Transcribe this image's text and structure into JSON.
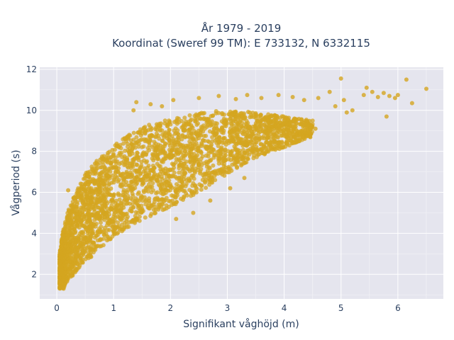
{
  "chart_data": {
    "type": "scatter",
    "title_line1": "År 1979 - 2019",
    "title_line2": "Koordinat (Sweref 99 TM): E 733132, N 6332115",
    "xlabel": "Signifikant våghöjd (m)",
    "ylabel": "Vågperiod (s)",
    "xlim": [
      -0.3,
      6.8
    ],
    "ylim": [
      0.8,
      12.1
    ],
    "x_ticks": [
      0,
      1,
      2,
      3,
      4,
      5,
      6
    ],
    "y_ticks": [
      2,
      4,
      6,
      8,
      10,
      12
    ],
    "grid": true,
    "legend": "none",
    "marker_color": "#d4a520",
    "plot_background": "#e5e5ee",
    "density_envelope": [
      {
        "x": 0.05,
        "y_low": 1.3,
        "y_high": 3.0
      },
      {
        "x": 0.1,
        "y_low": 1.3,
        "y_high": 4.0
      },
      {
        "x": 0.2,
        "y_low": 1.6,
        "y_high": 5.1
      },
      {
        "x": 0.3,
        "y_low": 2.0,
        "y_high": 5.8
      },
      {
        "x": 0.5,
        "y_low": 2.6,
        "y_high": 6.9
      },
      {
        "x": 0.75,
        "y_low": 3.2,
        "y_high": 7.7
      },
      {
        "x": 1.0,
        "y_low": 3.8,
        "y_high": 8.3
      },
      {
        "x": 1.25,
        "y_low": 4.3,
        "y_high": 8.8
      },
      {
        "x": 1.5,
        "y_low": 4.6,
        "y_high": 9.2
      },
      {
        "x": 1.75,
        "y_low": 5.0,
        "y_high": 9.4
      },
      {
        "x": 2.0,
        "y_low": 5.3,
        "y_high": 9.6
      },
      {
        "x": 2.5,
        "y_low": 6.0,
        "y_high": 9.9
      },
      {
        "x": 3.0,
        "y_low": 6.9,
        "y_high": 10.0
      },
      {
        "x": 3.5,
        "y_low": 7.7,
        "y_high": 9.9
      },
      {
        "x": 4.0,
        "y_low": 8.2,
        "y_high": 9.7
      },
      {
        "x": 4.5,
        "y_low": 8.7,
        "y_high": 9.5
      }
    ],
    "outliers": [
      {
        "x": 1.4,
        "y": 10.4
      },
      {
        "x": 1.65,
        "y": 10.3
      },
      {
        "x": 2.05,
        "y": 10.5
      },
      {
        "x": 2.5,
        "y": 10.6
      },
      {
        "x": 2.85,
        "y": 10.7
      },
      {
        "x": 3.15,
        "y": 10.55
      },
      {
        "x": 3.35,
        "y": 10.75
      },
      {
        "x": 3.6,
        "y": 10.6
      },
      {
        "x": 3.9,
        "y": 10.75
      },
      {
        "x": 4.15,
        "y": 10.65
      },
      {
        "x": 4.35,
        "y": 10.5
      },
      {
        "x": 4.6,
        "y": 10.6
      },
      {
        "x": 4.8,
        "y": 10.9
      },
      {
        "x": 4.9,
        "y": 10.2
      },
      {
        "x": 5.05,
        "y": 10.5
      },
      {
        "x": 5.2,
        "y": 10.0
      },
      {
        "x": 5.4,
        "y": 10.75
      },
      {
        "x": 5.55,
        "y": 10.9
      },
      {
        "x": 5.65,
        "y": 10.65
      },
      {
        "x": 5.75,
        "y": 10.85
      },
      {
        "x": 5.85,
        "y": 10.7
      },
      {
        "x": 5.95,
        "y": 10.6
      },
      {
        "x": 6.0,
        "y": 10.75
      },
      {
        "x": 6.15,
        "y": 11.5
      },
      {
        "x": 6.5,
        "y": 11.05
      },
      {
        "x": 6.25,
        "y": 10.35
      },
      {
        "x": 5.8,
        "y": 9.7
      },
      {
        "x": 5.0,
        "y": 11.55
      },
      {
        "x": 5.45,
        "y": 11.1
      },
      {
        "x": 5.1,
        "y": 9.9
      },
      {
        "x": 4.55,
        "y": 9.1
      },
      {
        "x": 1.35,
        "y": 10.0
      },
      {
        "x": 1.85,
        "y": 10.2
      },
      {
        "x": 0.55,
        "y": 6.5
      },
      {
        "x": 0.2,
        "y": 6.1
      },
      {
        "x": 2.7,
        "y": 5.6
      },
      {
        "x": 3.05,
        "y": 6.2
      },
      {
        "x": 3.3,
        "y": 6.7
      },
      {
        "x": 2.4,
        "y": 5.0
      },
      {
        "x": 2.1,
        "y": 4.7
      },
      {
        "x": 0.05,
        "y": 1.6
      },
      {
        "x": 0.12,
        "y": 1.3
      }
    ]
  }
}
